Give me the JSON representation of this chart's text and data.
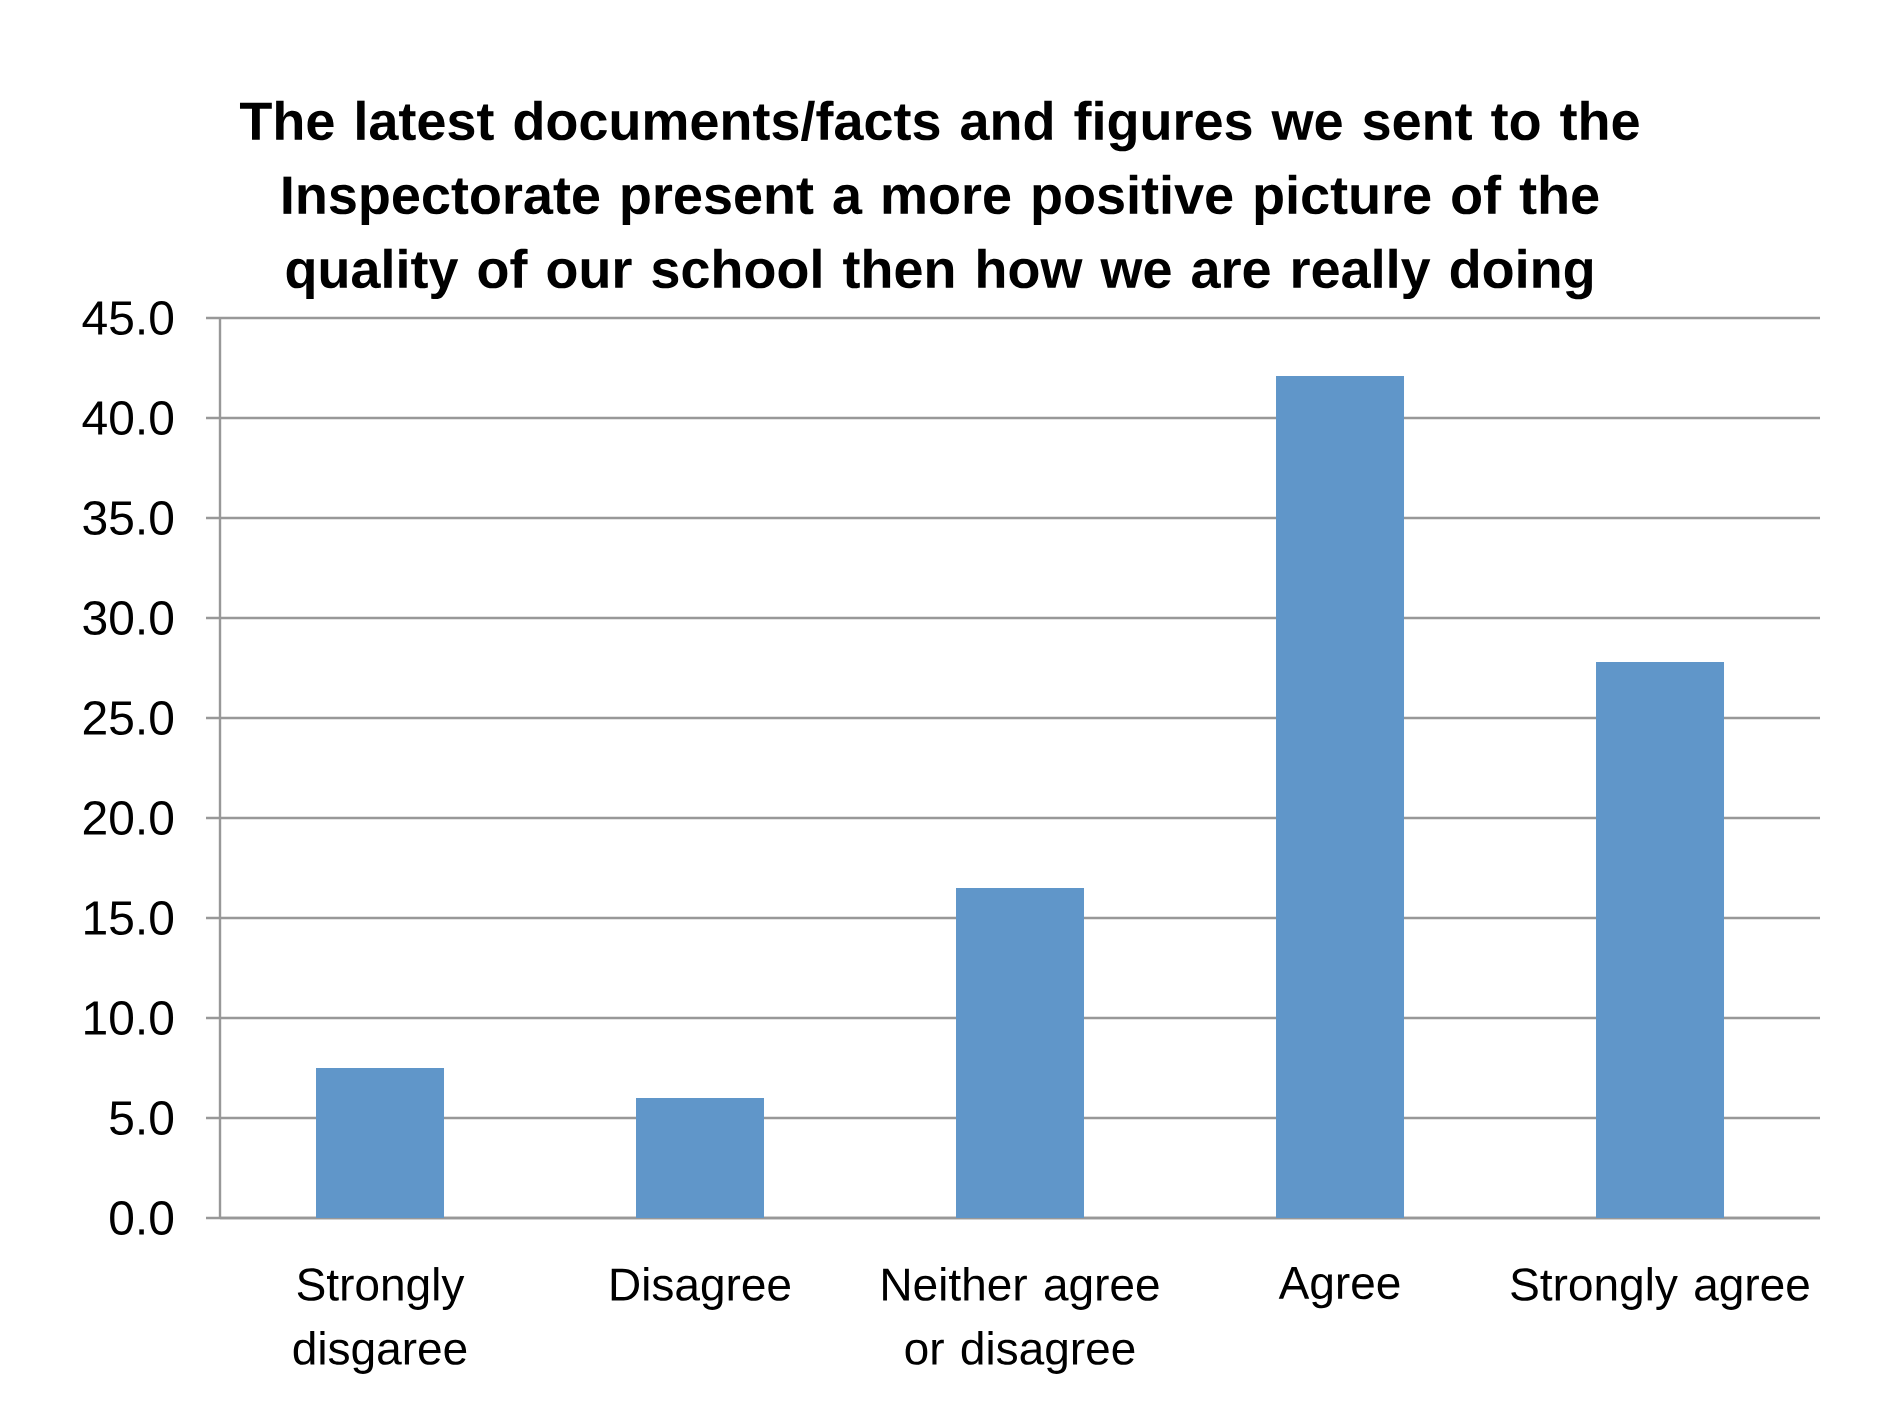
{
  "chart_data": {
    "type": "bar",
    "title": "The latest documents/facts and figures we sent to the Inspectorate present a more positive picture of the quality of our school then how we are really doing",
    "categories": [
      "Strongly disgaree",
      "Disagree",
      "Neither agree or disagree",
      "Agree",
      "Strongly agree"
    ],
    "values": [
      7.5,
      6.0,
      16.5,
      42.1,
      27.8
    ],
    "color": "#6096c9",
    "ylim": [
      0,
      45
    ],
    "yticks": [
      {
        "value": 0,
        "label": "0.0"
      },
      {
        "value": 5,
        "label": "5.0"
      },
      {
        "value": 10,
        "label": "10.0"
      },
      {
        "value": 15,
        "label": "15.0"
      },
      {
        "value": 20,
        "label": "20.0"
      },
      {
        "value": 25,
        "label": "25.0"
      },
      {
        "value": 30,
        "label": "30.0"
      },
      {
        "value": 35,
        "label": "35.0"
      },
      {
        "value": 40,
        "label": "40.0"
      },
      {
        "value": 45,
        "label": "45.0"
      }
    ],
    "grid": "y"
  }
}
